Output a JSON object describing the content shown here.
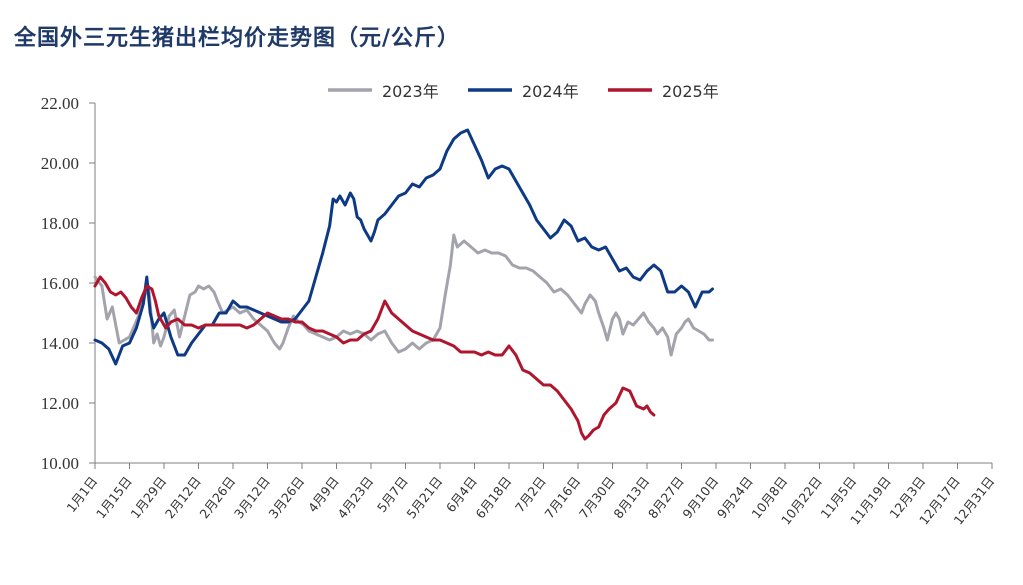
{
  "chart_data": {
    "type": "line",
    "title": "全国外三元生猪出栏均价走势图（元/公斤）",
    "xlabel": "",
    "ylabel": "",
    "ylim": [
      10,
      22
    ],
    "yticks": [
      "10.00",
      "12.00",
      "14.00",
      "16.00",
      "18.00",
      "20.00",
      "22.00"
    ],
    "categories": [
      "1月1日",
      "1月15日",
      "1月29日",
      "2月12日",
      "2月26日",
      "3月12日",
      "3月26日",
      "4月9日",
      "4月23日",
      "5月7日",
      "5月21日",
      "6月4日",
      "6月18日",
      "7月2日",
      "7月16日",
      "7月30日",
      "8月13日",
      "8月27日",
      "9月10日",
      "9月24日",
      "10月8日",
      "10月22日",
      "11月5日",
      "11月19日",
      "12月3日",
      "12月17日",
      "12月31日"
    ],
    "series": [
      {
        "name": "2023年",
        "color": "#a3a3ad",
        "values": [
          [
            0,
            16.2
          ],
          [
            0.2,
            15.9
          ],
          [
            0.35,
            14.8
          ],
          [
            0.5,
            15.2
          ],
          [
            0.7,
            14.0
          ],
          [
            0.85,
            14.1
          ],
          [
            1.0,
            14.2
          ],
          [
            1.15,
            14.6
          ],
          [
            1.3,
            15.0
          ],
          [
            1.45,
            15.6
          ],
          [
            1.55,
            15.9
          ],
          [
            1.7,
            14.0
          ],
          [
            1.8,
            14.3
          ],
          [
            1.9,
            13.9
          ],
          [
            2.0,
            14.2
          ],
          [
            2.15,
            14.9
          ],
          [
            2.3,
            15.1
          ],
          [
            2.45,
            14.2
          ],
          [
            2.6,
            14.9
          ],
          [
            2.75,
            15.6
          ],
          [
            2.9,
            15.7
          ],
          [
            3.0,
            15.9
          ],
          [
            3.15,
            15.8
          ],
          [
            3.3,
            15.9
          ],
          [
            3.45,
            15.7
          ],
          [
            3.55,
            15.4
          ],
          [
            3.7,
            15.0
          ],
          [
            3.85,
            15.1
          ],
          [
            4.0,
            15.2
          ],
          [
            4.2,
            15.0
          ],
          [
            4.4,
            15.1
          ],
          [
            4.6,
            14.8
          ],
          [
            4.8,
            14.6
          ],
          [
            5.0,
            14.4
          ],
          [
            5.1,
            14.2
          ],
          [
            5.2,
            14.0
          ],
          [
            5.35,
            13.8
          ],
          [
            5.45,
            14.0
          ],
          [
            5.6,
            14.5
          ],
          [
            5.75,
            14.9
          ],
          [
            5.9,
            14.7
          ],
          [
            6.05,
            14.6
          ],
          [
            6.2,
            14.4
          ],
          [
            6.4,
            14.3
          ],
          [
            6.6,
            14.2
          ],
          [
            6.8,
            14.1
          ],
          [
            7.0,
            14.2
          ],
          [
            7.2,
            14.4
          ],
          [
            7.4,
            14.3
          ],
          [
            7.6,
            14.4
          ],
          [
            7.8,
            14.3
          ],
          [
            8.0,
            14.1
          ],
          [
            8.2,
            14.3
          ],
          [
            8.4,
            14.4
          ],
          [
            8.6,
            14.0
          ],
          [
            8.8,
            13.7
          ],
          [
            9.0,
            13.8
          ],
          [
            9.2,
            14.0
          ],
          [
            9.4,
            13.8
          ],
          [
            9.6,
            14.0
          ],
          [
            9.8,
            14.1
          ],
          [
            10.0,
            14.5
          ],
          [
            10.15,
            15.6
          ],
          [
            10.3,
            16.6
          ],
          [
            10.4,
            17.6
          ],
          [
            10.5,
            17.2
          ],
          [
            10.7,
            17.4
          ],
          [
            10.9,
            17.2
          ],
          [
            11.1,
            17.0
          ],
          [
            11.3,
            17.1
          ],
          [
            11.5,
            17.0
          ],
          [
            11.7,
            17.0
          ],
          [
            11.9,
            16.9
          ],
          [
            12.1,
            16.6
          ],
          [
            12.3,
            16.5
          ],
          [
            12.5,
            16.5
          ],
          [
            12.7,
            16.4
          ],
          [
            12.9,
            16.2
          ],
          [
            13.1,
            16.0
          ],
          [
            13.3,
            15.7
          ],
          [
            13.5,
            15.8
          ],
          [
            13.7,
            15.6
          ],
          [
            13.9,
            15.3
          ],
          [
            14.1,
            15.0
          ],
          [
            14.2,
            15.3
          ],
          [
            14.35,
            15.6
          ],
          [
            14.5,
            15.4
          ],
          [
            14.6,
            15.0
          ],
          [
            14.75,
            14.5
          ],
          [
            14.85,
            14.1
          ],
          [
            15.0,
            14.8
          ],
          [
            15.1,
            15.0
          ],
          [
            15.2,
            14.8
          ],
          [
            15.3,
            14.3
          ],
          [
            15.45,
            14.7
          ],
          [
            15.6,
            14.6
          ],
          [
            15.75,
            14.8
          ],
          [
            15.9,
            15.0
          ],
          [
            16.05,
            14.7
          ],
          [
            16.2,
            14.5
          ],
          [
            16.3,
            14.3
          ],
          [
            16.45,
            14.5
          ],
          [
            16.6,
            14.2
          ],
          [
            16.7,
            13.6
          ],
          [
            16.85,
            14.3
          ],
          [
            17.0,
            14.5
          ],
          [
            17.1,
            14.7
          ],
          [
            17.2,
            14.8
          ],
          [
            17.35,
            14.5
          ],
          [
            17.5,
            14.4
          ],
          [
            17.65,
            14.3
          ],
          [
            17.8,
            14.1
          ],
          [
            17.9,
            14.1
          ]
        ]
      },
      {
        "name": "2024年",
        "color": "#0e3a85",
        "values": [
          [
            0,
            14.1
          ],
          [
            0.2,
            14.0
          ],
          [
            0.4,
            13.8
          ],
          [
            0.6,
            13.3
          ],
          [
            0.8,
            13.9
          ],
          [
            1.0,
            14.0
          ],
          [
            1.2,
            14.5
          ],
          [
            1.4,
            15.3
          ],
          [
            1.5,
            16.2
          ],
          [
            1.6,
            15.0
          ],
          [
            1.7,
            14.5
          ],
          [
            1.85,
            14.8
          ],
          [
            2.0,
            15.0
          ],
          [
            2.2,
            14.2
          ],
          [
            2.4,
            13.6
          ],
          [
            2.6,
            13.6
          ],
          [
            2.8,
            14.0
          ],
          [
            3.0,
            14.3
          ],
          [
            3.2,
            14.6
          ],
          [
            3.4,
            14.6
          ],
          [
            3.6,
            15.0
          ],
          [
            3.8,
            15.0
          ],
          [
            4.0,
            15.4
          ],
          [
            4.2,
            15.2
          ],
          [
            4.4,
            15.2
          ],
          [
            4.6,
            15.1
          ],
          [
            4.8,
            15.0
          ],
          [
            5.0,
            14.9
          ],
          [
            5.2,
            14.8
          ],
          [
            5.4,
            14.7
          ],
          [
            5.6,
            14.7
          ],
          [
            5.8,
            14.8
          ],
          [
            6.0,
            15.1
          ],
          [
            6.2,
            15.4
          ],
          [
            6.4,
            16.2
          ],
          [
            6.6,
            17.0
          ],
          [
            6.8,
            17.9
          ],
          [
            6.9,
            18.8
          ],
          [
            7.0,
            18.7
          ],
          [
            7.1,
            18.9
          ],
          [
            7.25,
            18.6
          ],
          [
            7.4,
            19.0
          ],
          [
            7.5,
            18.8
          ],
          [
            7.6,
            18.2
          ],
          [
            7.7,
            18.1
          ],
          [
            7.8,
            17.8
          ],
          [
            8.0,
            17.4
          ],
          [
            8.1,
            17.7
          ],
          [
            8.2,
            18.1
          ],
          [
            8.4,
            18.3
          ],
          [
            8.6,
            18.6
          ],
          [
            8.8,
            18.9
          ],
          [
            9.0,
            19.0
          ],
          [
            9.2,
            19.3
          ],
          [
            9.4,
            19.2
          ],
          [
            9.6,
            19.5
          ],
          [
            9.8,
            19.6
          ],
          [
            10.0,
            19.8
          ],
          [
            10.2,
            20.4
          ],
          [
            10.4,
            20.8
          ],
          [
            10.6,
            21.0
          ],
          [
            10.8,
            21.1
          ],
          [
            11.0,
            20.6
          ],
          [
            11.2,
            20.1
          ],
          [
            11.4,
            19.5
          ],
          [
            11.6,
            19.8
          ],
          [
            11.8,
            19.9
          ],
          [
            12.0,
            19.8
          ],
          [
            12.2,
            19.4
          ],
          [
            12.4,
            19.0
          ],
          [
            12.6,
            18.6
          ],
          [
            12.8,
            18.1
          ],
          [
            13.0,
            17.8
          ],
          [
            13.2,
            17.5
          ],
          [
            13.4,
            17.7
          ],
          [
            13.6,
            18.1
          ],
          [
            13.8,
            17.9
          ],
          [
            14.0,
            17.4
          ],
          [
            14.2,
            17.5
          ],
          [
            14.4,
            17.2
          ],
          [
            14.6,
            17.1
          ],
          [
            14.8,
            17.2
          ],
          [
            15.0,
            16.8
          ],
          [
            15.2,
            16.4
          ],
          [
            15.4,
            16.5
          ],
          [
            15.6,
            16.2
          ],
          [
            15.8,
            16.1
          ],
          [
            16.0,
            16.4
          ],
          [
            16.2,
            16.6
          ],
          [
            16.4,
            16.4
          ],
          [
            16.6,
            15.7
          ],
          [
            16.8,
            15.7
          ],
          [
            17.0,
            15.9
          ],
          [
            17.2,
            15.7
          ],
          [
            17.4,
            15.2
          ],
          [
            17.6,
            15.7
          ],
          [
            17.8,
            15.7
          ],
          [
            17.9,
            15.8
          ]
        ]
      },
      {
        "name": "2025年",
        "color": "#b0152e",
        "values": [
          [
            0,
            15.9
          ],
          [
            0.15,
            16.2
          ],
          [
            0.3,
            16.0
          ],
          [
            0.45,
            15.7
          ],
          [
            0.6,
            15.6
          ],
          [
            0.75,
            15.7
          ],
          [
            0.9,
            15.5
          ],
          [
            1.05,
            15.2
          ],
          [
            1.2,
            15.0
          ],
          [
            1.35,
            15.5
          ],
          [
            1.5,
            15.9
          ],
          [
            1.65,
            15.8
          ],
          [
            1.75,
            15.4
          ],
          [
            1.85,
            14.9
          ],
          [
            1.95,
            14.7
          ],
          [
            2.05,
            14.5
          ],
          [
            2.2,
            14.7
          ],
          [
            2.4,
            14.8
          ],
          [
            2.6,
            14.6
          ],
          [
            2.8,
            14.6
          ],
          [
            3.0,
            14.5
          ],
          [
            3.2,
            14.6
          ],
          [
            3.4,
            14.6
          ],
          [
            3.6,
            14.6
          ],
          [
            3.8,
            14.6
          ],
          [
            4.0,
            14.6
          ],
          [
            4.2,
            14.6
          ],
          [
            4.4,
            14.5
          ],
          [
            4.6,
            14.6
          ],
          [
            4.8,
            14.8
          ],
          [
            5.0,
            15.0
          ],
          [
            5.2,
            14.9
          ],
          [
            5.4,
            14.8
          ],
          [
            5.6,
            14.8
          ],
          [
            5.8,
            14.7
          ],
          [
            6.0,
            14.7
          ],
          [
            6.2,
            14.5
          ],
          [
            6.4,
            14.4
          ],
          [
            6.6,
            14.4
          ],
          [
            6.8,
            14.3
          ],
          [
            7.0,
            14.2
          ],
          [
            7.2,
            14.0
          ],
          [
            7.4,
            14.1
          ],
          [
            7.6,
            14.1
          ],
          [
            7.8,
            14.3
          ],
          [
            8.0,
            14.4
          ],
          [
            8.2,
            14.8
          ],
          [
            8.4,
            15.4
          ],
          [
            8.6,
            15.0
          ],
          [
            8.8,
            14.8
          ],
          [
            9.0,
            14.6
          ],
          [
            9.2,
            14.4
          ],
          [
            9.4,
            14.3
          ],
          [
            9.6,
            14.2
          ],
          [
            9.8,
            14.1
          ],
          [
            10.0,
            14.1
          ],
          [
            10.2,
            14.0
          ],
          [
            10.4,
            13.9
          ],
          [
            10.6,
            13.7
          ],
          [
            10.8,
            13.7
          ],
          [
            11.0,
            13.7
          ],
          [
            11.2,
            13.6
          ],
          [
            11.4,
            13.7
          ],
          [
            11.6,
            13.6
          ],
          [
            11.8,
            13.6
          ],
          [
            12.0,
            13.9
          ],
          [
            12.2,
            13.6
          ],
          [
            12.4,
            13.1
          ],
          [
            12.6,
            13.0
          ],
          [
            12.8,
            12.8
          ],
          [
            13.0,
            12.6
          ],
          [
            13.2,
            12.6
          ],
          [
            13.4,
            12.4
          ],
          [
            13.6,
            12.1
          ],
          [
            13.8,
            11.8
          ],
          [
            14.0,
            11.4
          ],
          [
            14.1,
            11.0
          ],
          [
            14.2,
            10.8
          ],
          [
            14.3,
            10.9
          ],
          [
            14.45,
            11.1
          ],
          [
            14.6,
            11.2
          ],
          [
            14.75,
            11.6
          ],
          [
            14.9,
            11.8
          ],
          [
            15.1,
            12.0
          ],
          [
            15.3,
            12.5
          ],
          [
            15.5,
            12.4
          ],
          [
            15.7,
            11.9
          ],
          [
            15.9,
            11.8
          ],
          [
            16.0,
            11.9
          ],
          [
            16.1,
            11.7
          ],
          [
            16.2,
            11.6
          ]
        ]
      }
    ]
  }
}
